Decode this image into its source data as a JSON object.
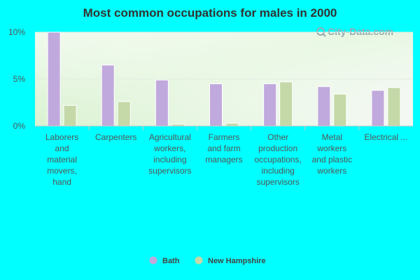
{
  "chart_data": {
    "type": "bar",
    "title": "Most common occupations for males in 2000",
    "categories": [
      [
        "Laborers",
        "and",
        "material",
        "movers,",
        "hand"
      ],
      [
        "Carpenters"
      ],
      [
        "Agricultural",
        "workers,",
        "including",
        "supervisors"
      ],
      [
        "Farmers",
        "and farm",
        "managers"
      ],
      [
        "Other",
        "production",
        "occupations,",
        "including",
        "supervisors"
      ],
      [
        "Metal",
        "workers",
        "and plastic",
        "workers"
      ],
      [
        "Electrical ..."
      ]
    ],
    "series": [
      {
        "name": "Bath",
        "color": "#c0a9dc",
        "values": [
          10.0,
          6.5,
          4.9,
          4.5,
          4.5,
          4.2,
          3.8
        ]
      },
      {
        "name": "New Hampshire",
        "color": "#c5d9a8",
        "values": [
          2.2,
          2.6,
          0.2,
          0.3,
          4.7,
          3.4,
          4.1
        ]
      }
    ],
    "yticks": [
      {
        "value": 0,
        "label": "0%"
      },
      {
        "value": 5,
        "label": "5%"
      },
      {
        "value": 10,
        "label": "10%"
      }
    ],
    "ylim": [
      0,
      10
    ],
    "grid": true,
    "legend_position": "bottom-center",
    "watermark": "City-Data.com"
  }
}
